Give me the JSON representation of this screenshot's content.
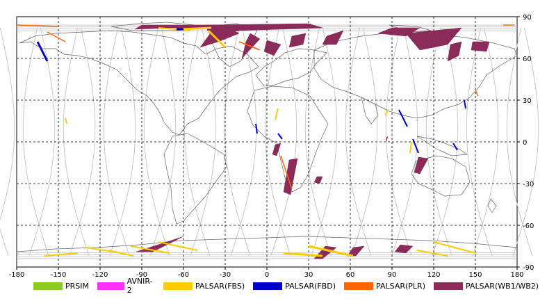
{
  "axes": {
    "x_ticks": [
      "-180",
      "-150",
      "-120",
      "-90",
      "-60",
      "-30",
      "0",
      "30",
      "60",
      "90",
      "120",
      "150",
      "180"
    ],
    "y_ticks_right": [
      "90",
      "60",
      "30",
      "0",
      "-30",
      "-60",
      "-90"
    ]
  },
  "chart_data": {
    "type": "map",
    "projection": "equirectangular",
    "xlim": [
      -180,
      180
    ],
    "ylim": [
      -90,
      90
    ],
    "grid": true,
    "legend_position": "bottom",
    "series": [
      {
        "name": "PRSIM",
        "color": "#88cc22"
      },
      {
        "name": "AVNIR-2",
        "color": "#ff33ff"
      },
      {
        "name": "PALSAR(FBS)",
        "color": "#ffcc00"
      },
      {
        "name": "PALSAR(FBD)",
        "color": "#0000cc"
      },
      {
        "name": "PALSAR(PLR)",
        "color": "#ff6600"
      },
      {
        "name": "PALSAR(WB1/WB2)",
        "color": "#8b2b5a"
      }
    ]
  },
  "legend": [
    {
      "label": "PRSIM",
      "color": "#88cc22"
    },
    {
      "label": "AVNIR-2",
      "color": "#ff33ff"
    },
    {
      "label": "PALSAR(FBS)",
      "color": "#ffcc00"
    },
    {
      "label": "PALSAR(FBD)",
      "color": "#0000cc"
    },
    {
      "label": "PALSAR(PLR)",
      "color": "#ff6600"
    },
    {
      "label": "PALSAR(WB1/WB2)",
      "color": "#8b2b5a"
    }
  ]
}
